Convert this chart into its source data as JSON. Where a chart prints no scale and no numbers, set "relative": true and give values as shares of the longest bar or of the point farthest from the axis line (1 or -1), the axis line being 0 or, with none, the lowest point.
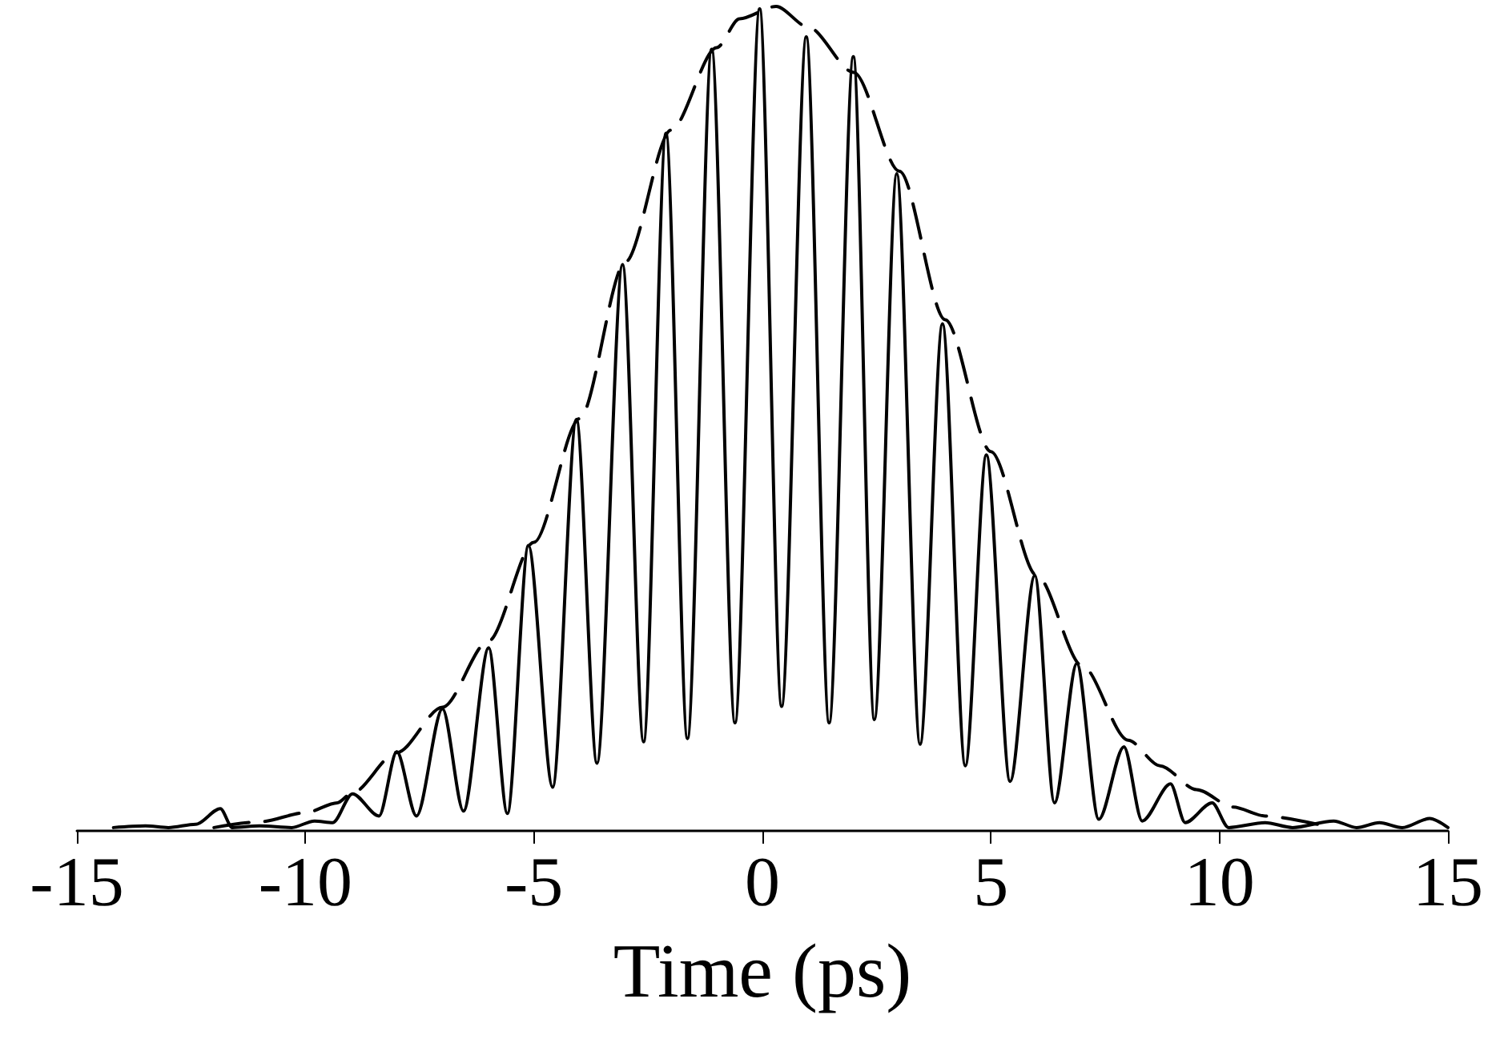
{
  "chart_data": {
    "type": "line",
    "relative": true,
    "xlabel": "Time (ps)",
    "xlim": [
      -15,
      15
    ],
    "xticks": [
      -15,
      -10,
      -5,
      0,
      5,
      10,
      15
    ],
    "grid": false,
    "marker": "none",
    "series": [
      {
        "color": "#000000",
        "line_style": "solid",
        "x": [
          -14.2,
          -13.5,
          -13,
          -12.4,
          -11.86,
          -11.6,
          -11,
          -10.3,
          -9.8,
          -9.4,
          -8.97,
          -8.39,
          -8,
          -7.57,
          -7,
          -6.54,
          -5.99,
          -5.58,
          -5.12,
          -4.59,
          -4.07,
          -3.62,
          -3.06,
          -2.6,
          -2.11,
          -1.64,
          -1.11,
          -0.6,
          -0.06,
          0.42,
          0.96,
          1.46,
          1.99,
          2.45,
          2.94,
          3.45,
          3.94,
          4.44,
          4.9,
          5.42,
          5.96,
          6.39,
          6.88,
          7.36,
          7.91,
          8.31,
          8.93,
          9.25,
          9.84,
          10.2,
          11,
          11.6,
          12.5,
          13,
          13.5,
          14,
          14.6,
          15
        ],
        "values": [
          0.004,
          0.006,
          0.004,
          0.008,
          0.027,
          0.004,
          0.006,
          0.004,
          0.012,
          0.01,
          0.045,
          0.018,
          0.096,
          0.018,
          0.148,
          0.024,
          0.222,
          0.021,
          0.346,
          0.053,
          0.499,
          0.082,
          0.687,
          0.108,
          0.846,
          0.112,
          0.948,
          0.131,
          0.997,
          0.151,
          0.963,
          0.131,
          0.939,
          0.135,
          0.797,
          0.105,
          0.615,
          0.079,
          0.456,
          0.06,
          0.31,
          0.034,
          0.203,
          0.014,
          0.102,
          0.012,
          0.057,
          0.01,
          0.034,
          0.004,
          0.01,
          0.004,
          0.012,
          0.004,
          0.01,
          0.004,
          0.015,
          0.004
        ]
      },
      {
        "color": "#000000",
        "line_style": "dashed",
        "x": [
          -12,
          -11,
          -10,
          -9.3,
          -9,
          -8,
          -7,
          -6,
          -5,
          -4,
          -3,
          -2,
          -1,
          -0.5,
          0.3,
          1,
          2,
          3,
          4,
          5,
          6,
          7,
          8,
          8.7,
          9.5,
          10.3,
          11,
          12.3
        ],
        "values": [
          0.004,
          0.011,
          0.022,
          0.034,
          0.045,
          0.095,
          0.15,
          0.23,
          0.35,
          0.5,
          0.69,
          0.85,
          0.95,
          0.985,
          1,
          0.975,
          0.92,
          0.8,
          0.62,
          0.46,
          0.31,
          0.2,
          0.11,
          0.079,
          0.05,
          0.029,
          0.018,
          0.006
        ]
      }
    ]
  }
}
